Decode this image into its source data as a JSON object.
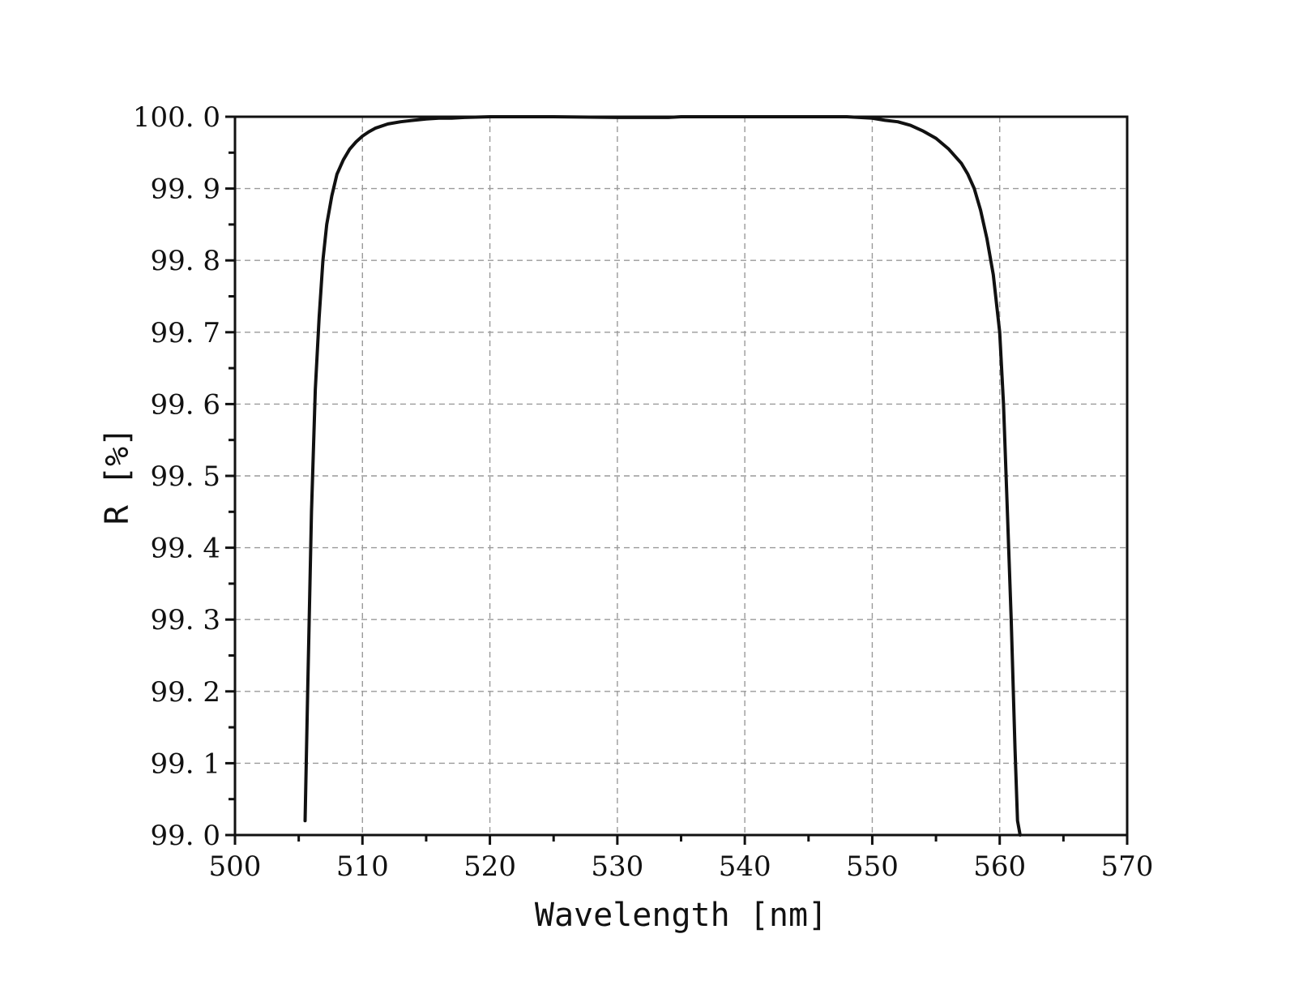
{
  "chart_data": {
    "type": "line",
    "title": "",
    "xlabel": "Wavelength [nm]",
    "ylabel": "R [%]",
    "xlim": [
      500,
      570
    ],
    "ylim": [
      99.0,
      100.0
    ],
    "x_ticks": [
      500,
      510,
      520,
      530,
      540,
      550,
      560,
      570
    ],
    "x_tick_labels": [
      "500",
      "510",
      "520",
      "530",
      "540",
      "550",
      "560",
      "570"
    ],
    "y_ticks": [
      99.0,
      99.1,
      99.2,
      99.3,
      99.4,
      99.5,
      99.6,
      99.7,
      99.8,
      99.9,
      100.0
    ],
    "y_tick_labels": [
      "99. 0",
      "99. 1",
      "99. 2",
      "99. 3",
      "99. 4",
      "99. 5",
      "99. 6",
      "99. 7",
      "99. 8",
      "99. 9",
      "100. 0"
    ],
    "grid": true,
    "legend": "none",
    "line_color": "#111111",
    "series": [
      {
        "x": [
          505.5,
          505.7,
          506.0,
          506.3,
          506.6,
          506.9,
          507.2,
          507.6,
          508.0,
          508.5,
          509.0,
          509.5,
          510.0,
          510.5,
          511.0,
          512.0,
          513.0,
          514.0,
          515.0,
          516.0,
          517.0,
          518.0,
          520.0,
          525.0,
          530.0,
          532.0,
          534.0,
          535.0,
          540.0,
          545.0,
          548.0,
          550.0,
          551.0,
          552.0,
          553.0,
          554.0,
          555.0,
          556.0,
          557.0,
          557.5,
          558.0,
          558.5,
          559.0,
          559.5,
          560.0,
          560.3,
          560.6,
          560.9,
          561.2,
          561.4,
          561.6
        ],
        "y": [
          99.02,
          99.2,
          99.45,
          99.62,
          99.72,
          99.8,
          99.85,
          99.89,
          99.92,
          99.94,
          99.955,
          99.965,
          99.973,
          99.979,
          99.984,
          99.99,
          99.993,
          99.995,
          99.997,
          99.998,
          99.998,
          99.999,
          100.0,
          100.0,
          99.999,
          99.999,
          99.999,
          100.0,
          100.0,
          100.0,
          100.0,
          99.998,
          99.995,
          99.993,
          99.988,
          99.98,
          99.97,
          99.955,
          99.935,
          99.92,
          99.9,
          99.87,
          99.83,
          99.78,
          99.7,
          99.6,
          99.45,
          99.3,
          99.12,
          99.02,
          99.0
        ]
      }
    ]
  }
}
